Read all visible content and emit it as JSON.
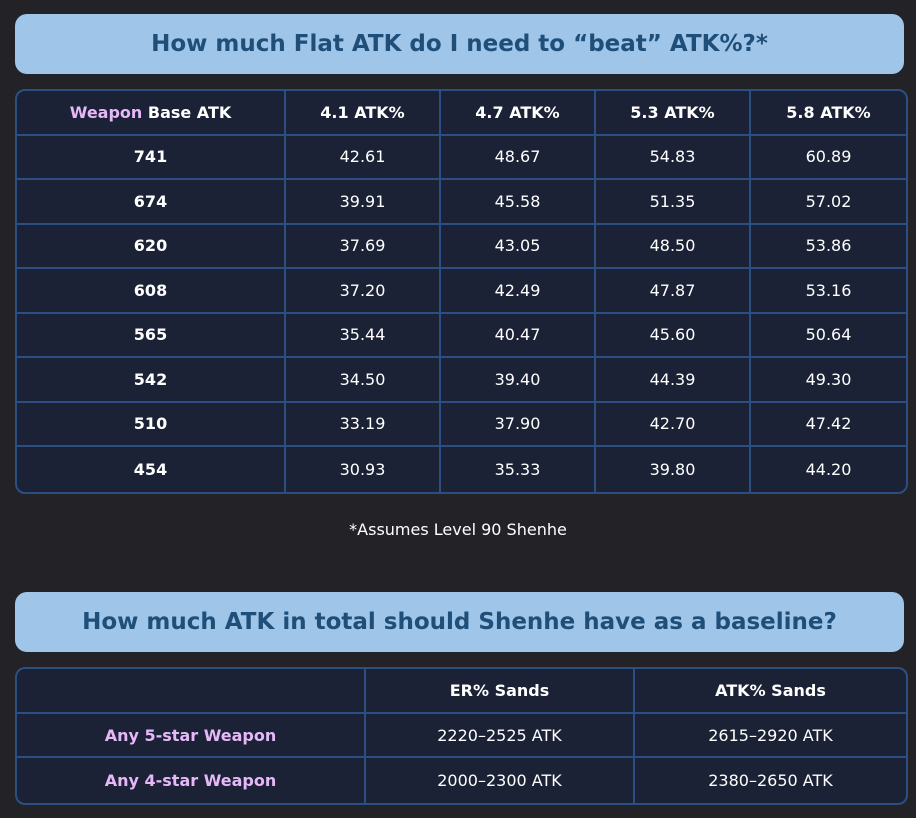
{
  "colors": {
    "background": "#232226",
    "banner_bg": "#9fc5e8",
    "banner_text": "#1f4e79",
    "table_bg": "#1b2236",
    "table_border": "#2b4f82",
    "accent_text": "#e6b8f7"
  },
  "section1": {
    "title": "How much Flat ATK do I need to “beat” ATK%?*",
    "header": {
      "first_accent": "Weapon",
      "first_rest": " Base ATK",
      "columns": [
        "4.1 ATK%",
        "4.7 ATK%",
        "5.3 ATK%",
        "5.8 ATK%"
      ]
    },
    "rows": [
      {
        "base": "741",
        "values": [
          "42.61",
          "48.67",
          "54.83",
          "60.89"
        ]
      },
      {
        "base": "674",
        "values": [
          "39.91",
          "45.58",
          "51.35",
          "57.02"
        ]
      },
      {
        "base": "620",
        "values": [
          "37.69",
          "43.05",
          "48.50",
          "53.86"
        ]
      },
      {
        "base": "608",
        "values": [
          "37.20",
          "42.49",
          "47.87",
          "53.16"
        ]
      },
      {
        "base": "565",
        "values": [
          "35.44",
          "40.47",
          "45.60",
          "50.64"
        ]
      },
      {
        "base": "542",
        "values": [
          "34.50",
          "39.40",
          "44.39",
          "49.30"
        ]
      },
      {
        "base": "510",
        "values": [
          "33.19",
          "37.90",
          "42.70",
          "47.42"
        ]
      },
      {
        "base": "454",
        "values": [
          "30.93",
          "35.33",
          "39.80",
          "44.20"
        ]
      }
    ],
    "footnote": "*Assumes Level 90 Shenhe"
  },
  "section2": {
    "title": "How much ATK in total should Shenhe have as a baseline?",
    "header": {
      "first": "",
      "columns": [
        "ER% Sands",
        "ATK% Sands"
      ]
    },
    "rows": [
      {
        "label": "Any 5-star Weapon",
        "values": [
          "2220–2525 ATK",
          "2615–2920 ATK"
        ]
      },
      {
        "label": "Any 4-star Weapon",
        "values": [
          "2000–2300 ATK",
          "2380–2650 ATK"
        ]
      }
    ]
  }
}
